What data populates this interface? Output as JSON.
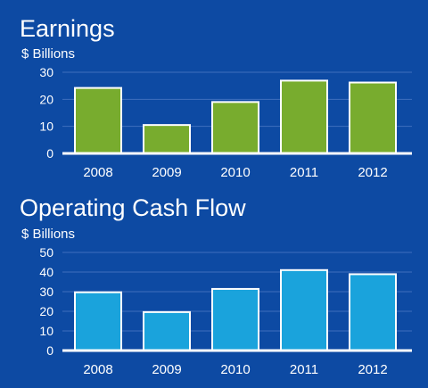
{
  "colors": {
    "background": "#0d4aa3",
    "gridline": "#3e6fbe",
    "axis": "#ffffff",
    "bar_outline": "#ffffff"
  },
  "chart_data": [
    {
      "type": "bar",
      "title": "Earnings",
      "unit_label": "$ Billions",
      "categories": [
        "2008",
        "2009",
        "2010",
        "2011",
        "2012"
      ],
      "values": [
        24.2,
        10.5,
        19.0,
        26.9,
        26.2
      ],
      "ylim": [
        0,
        30
      ],
      "yticks": [
        "0",
        "10",
        "20",
        "30"
      ],
      "grid": true,
      "bar_color": "#78ac2e"
    },
    {
      "type": "bar",
      "title": "Operating Cash Flow",
      "unit_label": "$ Billions",
      "categories": [
        "2008",
        "2009",
        "2010",
        "2011",
        "2012"
      ],
      "values": [
        29.7,
        19.6,
        31.4,
        41.0,
        38.9
      ],
      "ylim": [
        0,
        50
      ],
      "yticks": [
        "0",
        "10",
        "20",
        "30",
        "40",
        "50"
      ],
      "grid": true,
      "bar_color": "#1aa3dc"
    }
  ]
}
